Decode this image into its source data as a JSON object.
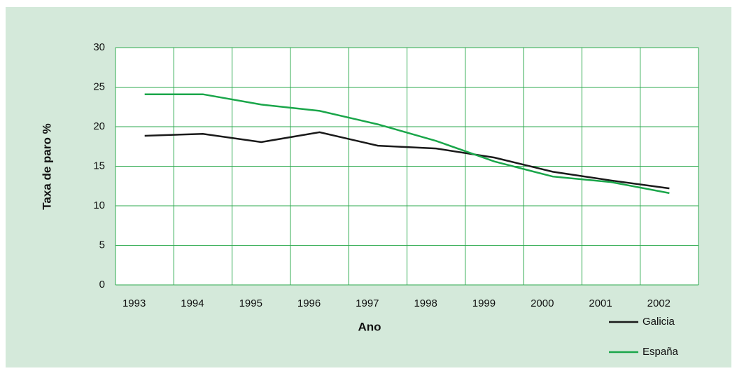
{
  "chart_data": {
    "type": "line",
    "x_label": "Ano",
    "y_label": "Taxa de paro %",
    "categories": [
      "1993",
      "1994",
      "1995",
      "1996",
      "1997",
      "1998",
      "1999",
      "2000",
      "2001",
      "2002"
    ],
    "series": [
      {
        "name": "Galicia",
        "color": "#1a1a1a",
        "values": [
          18.85,
          19.1,
          18.05,
          19.3,
          17.6,
          17.25,
          16.1,
          14.3,
          13.2,
          12.2
        ]
      },
      {
        "name": "España",
        "color": "#1aa64a",
        "values": [
          24.1,
          24.1,
          22.8,
          22.0,
          20.3,
          18.2,
          15.6,
          13.7,
          13.0,
          11.6
        ]
      }
    ],
    "ylim": [
      0,
      30
    ],
    "yticks": [
      0,
      5,
      10,
      15,
      20,
      25,
      30
    ],
    "grid": true
  }
}
